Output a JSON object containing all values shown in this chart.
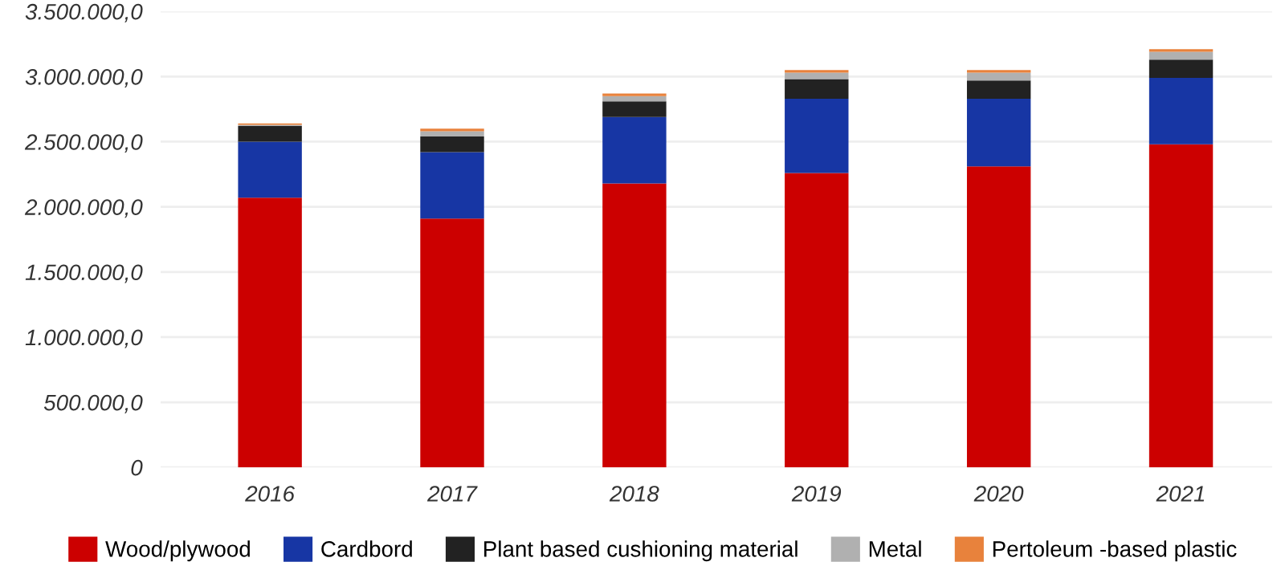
{
  "chart_data": {
    "type": "bar",
    "stacked": true,
    "categories": [
      "2016",
      "2017",
      "2018",
      "2019",
      "2020",
      "2021"
    ],
    "series": [
      {
        "name": "Wood/plywood",
        "color": "#cc0000",
        "values": [
          2070000,
          1910000,
          2180000,
          2260000,
          2310000,
          2480000
        ]
      },
      {
        "name": "Cardbord",
        "color": "#1736a4",
        "values": [
          430000,
          510000,
          510000,
          570000,
          520000,
          510000
        ]
      },
      {
        "name": "Plant based cushioning material",
        "color": "#222222",
        "values": [
          120000,
          120000,
          120000,
          150000,
          140000,
          140000
        ]
      },
      {
        "name": "Metal",
        "color": "#b0b0b0",
        "values": [
          10000,
          40000,
          40000,
          50000,
          60000,
          60000
        ]
      },
      {
        "name": "Pertoleum -based plastic",
        "color": "#e8823c",
        "values": [
          10000,
          20000,
          20000,
          20000,
          20000,
          20000
        ]
      }
    ],
    "ylim": [
      0,
      3500000
    ],
    "yticks": [
      {
        "value": 0,
        "label": "0"
      },
      {
        "value": 500000,
        "label": "500.000,0"
      },
      {
        "value": 1000000,
        "label": "1.000.000,0"
      },
      {
        "value": 1500000,
        "label": "1.500.000,0"
      },
      {
        "value": 2000000,
        "label": "2.000.000,0"
      },
      {
        "value": 2500000,
        "label": "2.500.000,0"
      },
      {
        "value": 3000000,
        "label": "3.000.000,0"
      },
      {
        "value": 3500000,
        "label": "3.500.000,0"
      }
    ],
    "grid": "y",
    "legend": "bottom"
  }
}
